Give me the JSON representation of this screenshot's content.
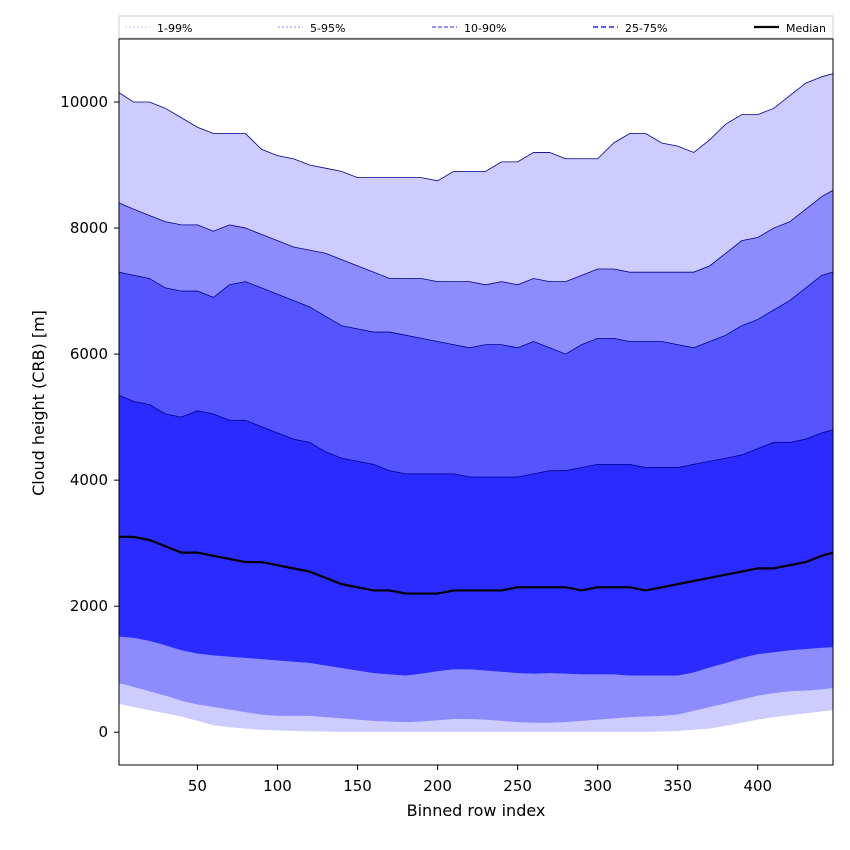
{
  "chart_data": {
    "type": "area",
    "xlabel": "Binned row index",
    "ylabel": "Cloud height (CRB) [m]",
    "xlim": [
      1,
      447
    ],
    "ylim": [
      -520,
      11000
    ],
    "xticks": [
      50,
      100,
      150,
      200,
      250,
      300,
      350,
      400
    ],
    "yticks": [
      0,
      2000,
      4000,
      6000,
      8000,
      10000
    ],
    "legend": {
      "placement": "top",
      "entries": [
        "1-99%",
        "5-95%",
        "10-90%",
        "25-75%",
        "Median"
      ]
    },
    "colors": {
      "band_1_99": "#ccccff",
      "band_5_95": "#8c8cff",
      "band_10_90": "#5555ff",
      "band_25_75": "#2b2bff",
      "median": "#000000",
      "edge": "#00008b"
    },
    "x": [
      1,
      10,
      20,
      30,
      40,
      50,
      60,
      70,
      80,
      90,
      100,
      110,
      120,
      130,
      140,
      150,
      160,
      170,
      180,
      190,
      200,
      210,
      220,
      230,
      240,
      250,
      260,
      270,
      280,
      290,
      300,
      310,
      320,
      330,
      340,
      350,
      360,
      370,
      380,
      390,
      400,
      410,
      420,
      430,
      440,
      447
    ],
    "series": [
      {
        "name": "1-99%",
        "lower": [
          450,
          400,
          350,
          300,
          250,
          180,
          110,
          80,
          60,
          40,
          30,
          20,
          15,
          10,
          5,
          5,
          5,
          5,
          5,
          5,
          5,
          5,
          5,
          5,
          5,
          5,
          5,
          5,
          5,
          5,
          5,
          5,
          5,
          5,
          10,
          20,
          40,
          60,
          100,
          150,
          200,
          240,
          270,
          300,
          330,
          350
        ],
        "upper": [
          10150,
          10000,
          10000,
          9900,
          9750,
          9600,
          9500,
          9500,
          9500,
          9250,
          9150,
          9100,
          9000,
          8950,
          8900,
          8800,
          8800,
          8800,
          8800,
          8800,
          8750,
          8900,
          8900,
          8900,
          9050,
          9050,
          9200,
          9200,
          9100,
          9100,
          9100,
          9350,
          9500,
          9500,
          9350,
          9300,
          9200,
          9400,
          9650,
          9800,
          9800,
          9900,
          10100,
          10300,
          10400,
          10450
        ]
      },
      {
        "name": "5-95%",
        "lower": [
          780,
          720,
          650,
          580,
          500,
          440,
          400,
          360,
          320,
          280,
          260,
          260,
          260,
          240,
          220,
          200,
          180,
          170,
          160,
          170,
          190,
          210,
          210,
          200,
          180,
          160,
          150,
          150,
          160,
          180,
          200,
          220,
          240,
          250,
          260,
          280,
          340,
          400,
          460,
          520,
          580,
          620,
          650,
          660,
          680,
          700
        ],
        "upper": [
          8400,
          8300,
          8200,
          8100,
          8050,
          8050,
          7950,
          8050,
          8000,
          7900,
          7800,
          7700,
          7650,
          7600,
          7500,
          7400,
          7300,
          7200,
          7200,
          7200,
          7150,
          7150,
          7150,
          7100,
          7150,
          7100,
          7200,
          7150,
          7150,
          7250,
          7350,
          7350,
          7300,
          7300,
          7300,
          7300,
          7300,
          7400,
          7600,
          7800,
          7850,
          8000,
          8100,
          8300,
          8500,
          8600
        ]
      },
      {
        "name": "10-90%",
        "lower": [
          1520,
          1500,
          1450,
          1380,
          1300,
          1250,
          1220,
          1200,
          1180,
          1160,
          1140,
          1120,
          1100,
          1060,
          1020,
          980,
          940,
          920,
          900,
          930,
          970,
          1000,
          1000,
          980,
          960,
          940,
          930,
          940,
          930,
          920,
          920,
          920,
          900,
          900,
          900,
          900,
          950,
          1030,
          1100,
          1180,
          1240,
          1270,
          1300,
          1320,
          1340,
          1350
        ],
        "upper": [
          7300,
          7250,
          7200,
          7050,
          7000,
          7000,
          6900,
          7100,
          7150,
          7050,
          6950,
          6850,
          6750,
          6600,
          6450,
          6400,
          6350,
          6350,
          6300,
          6250,
          6200,
          6150,
          6100,
          6150,
          6150,
          6100,
          6200,
          6100,
          6000,
          6150,
          6250,
          6250,
          6200,
          6200,
          6200,
          6150,
          6100,
          6200,
          6300,
          6450,
          6550,
          6700,
          6850,
          7050,
          7250,
          7300
        ]
      },
      {
        "name": "25-75%",
        "lower": null,
        "upper": [
          5350,
          5250,
          5200,
          5050,
          5000,
          5100,
          5050,
          4950,
          4950,
          4850,
          4750,
          4650,
          4600,
          4450,
          4350,
          4300,
          4250,
          4150,
          4100,
          4100,
          4100,
          4100,
          4050,
          4050,
          4050,
          4050,
          4100,
          4150,
          4150,
          4200,
          4250,
          4250,
          4250,
          4200,
          4200,
          4200,
          4250,
          4300,
          4350,
          4400,
          4500,
          4600,
          4600,
          4650,
          4750,
          4800
        ]
      },
      {
        "name": "Median",
        "values": [
          3100,
          3100,
          3050,
          2950,
          2850,
          2850,
          2800,
          2750,
          2700,
          2700,
          2650,
          2600,
          2550,
          2450,
          2350,
          2300,
          2250,
          2250,
          2200,
          2200,
          2200,
          2250,
          2250,
          2250,
          2250,
          2300,
          2300,
          2300,
          2300,
          2250,
          2300,
          2300,
          2300,
          2250,
          2300,
          2350,
          2400,
          2450,
          2500,
          2550,
          2600,
          2600,
          2650,
          2700,
          2800,
          2850
        ]
      }
    ]
  }
}
